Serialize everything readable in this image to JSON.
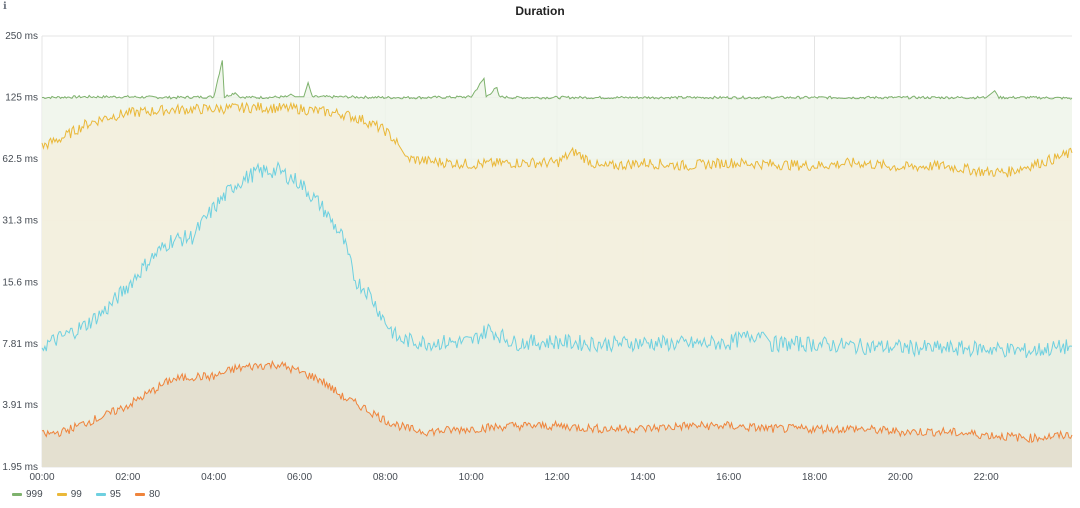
{
  "panel": {
    "title": "Duration",
    "info_icon": "info-icon"
  },
  "chart_data": {
    "type": "line",
    "title": "Duration",
    "y_scale": "log2",
    "ylim_ms": [
      1.95,
      250
    ],
    "y_ticks": [
      {
        "label": "250 ms",
        "value": 250
      },
      {
        "label": "125 ms",
        "value": 125
      },
      {
        "label": "62.5 ms",
        "value": 62.5
      },
      {
        "label": "31.3 ms",
        "value": 31.3
      },
      {
        "label": "15.6 ms",
        "value": 15.6
      },
      {
        "label": "7.81 ms",
        "value": 7.81
      },
      {
        "label": "3.91 ms",
        "value": 3.91
      },
      {
        "label": "1.95 ms",
        "value": 1.95
      }
    ],
    "x_range_hours": [
      0,
      24
    ],
    "x_ticks": [
      {
        "label": "00:00",
        "hour": 0
      },
      {
        "label": "02:00",
        "hour": 2
      },
      {
        "label": "04:00",
        "hour": 4
      },
      {
        "label": "06:00",
        "hour": 6
      },
      {
        "label": "08:00",
        "hour": 8
      },
      {
        "label": "10:00",
        "hour": 10
      },
      {
        "label": "12:00",
        "hour": 12
      },
      {
        "label": "14:00",
        "hour": 14
      },
      {
        "label": "16:00",
        "hour": 16
      },
      {
        "label": "18:00",
        "hour": 18
      },
      {
        "label": "20:00",
        "hour": 20
      },
      {
        "label": "22:00",
        "hour": 22
      }
    ],
    "grid": true,
    "legend_position": "bottom-left",
    "series": [
      {
        "name": "999",
        "color": "#7eb26d",
        "fill": "#eef5ea",
        "points": [
          [
            0,
            125
          ],
          [
            1,
            126
          ],
          [
            2,
            126
          ],
          [
            3,
            125
          ],
          [
            4,
            126
          ],
          [
            4.2,
            190
          ],
          [
            4.25,
            126
          ],
          [
            4.5,
            132
          ],
          [
            4.6,
            126
          ],
          [
            5,
            125
          ],
          [
            5.7,
            126
          ],
          [
            5.8,
            130
          ],
          [
            5.9,
            126
          ],
          [
            6.1,
            126
          ],
          [
            6.2,
            148
          ],
          [
            6.3,
            126
          ],
          [
            7,
            126
          ],
          [
            8,
            125
          ],
          [
            9,
            125
          ],
          [
            10,
            126
          ],
          [
            10.3,
            155
          ],
          [
            10.35,
            126
          ],
          [
            10.6,
            140
          ],
          [
            10.65,
            126
          ],
          [
            11,
            125
          ],
          [
            12,
            125
          ],
          [
            13,
            125
          ],
          [
            14,
            125
          ],
          [
            15,
            125
          ],
          [
            16,
            125
          ],
          [
            17,
            125
          ],
          [
            18,
            125
          ],
          [
            19,
            125
          ],
          [
            20,
            125
          ],
          [
            21,
            125
          ],
          [
            22,
            125
          ],
          [
            22.2,
            135
          ],
          [
            22.3,
            125
          ],
          [
            23,
            125
          ],
          [
            24,
            124
          ]
        ]
      },
      {
        "name": "99",
        "color": "#eab839",
        "fill": "#f3efdc",
        "points": [
          [
            0,
            72
          ],
          [
            0.5,
            80
          ],
          [
            1,
            92
          ],
          [
            1.5,
            100
          ],
          [
            2,
            105
          ],
          [
            3,
            109
          ],
          [
            4,
            110
          ],
          [
            5,
            112
          ],
          [
            6,
            110
          ],
          [
            7,
            104
          ],
          [
            7.5,
            97
          ],
          [
            8,
            86
          ],
          [
            8.3,
            74
          ],
          [
            8.5,
            63
          ],
          [
            9,
            61
          ],
          [
            10,
            59
          ],
          [
            11,
            60
          ],
          [
            12,
            60
          ],
          [
            12.4,
            68
          ],
          [
            13,
            57
          ],
          [
            14,
            60
          ],
          [
            15,
            58
          ],
          [
            16,
            60
          ],
          [
            17,
            59
          ],
          [
            18,
            58
          ],
          [
            19,
            60
          ],
          [
            20,
            57
          ],
          [
            21,
            58
          ],
          [
            22,
            54
          ],
          [
            22.5,
            54
          ],
          [
            23,
            58
          ],
          [
            23.5,
            62
          ],
          [
            24,
            67
          ]
        ]
      },
      {
        "name": "95",
        "color": "#6ed0e0",
        "fill": "#e6efe4",
        "points": [
          [
            0,
            7.6
          ],
          [
            0.5,
            8.5
          ],
          [
            1,
            9.6
          ],
          [
            1.5,
            11.5
          ],
          [
            2,
            15
          ],
          [
            2.5,
            20
          ],
          [
            3,
            25
          ],
          [
            3.5,
            26
          ],
          [
            4,
            36
          ],
          [
            4.5,
            47
          ],
          [
            5,
            54
          ],
          [
            5.5,
            55
          ],
          [
            6,
            48
          ],
          [
            6.5,
            37
          ],
          [
            7,
            26
          ],
          [
            7.3,
            16
          ],
          [
            7.6,
            14
          ],
          [
            8,
            10
          ],
          [
            8.3,
            8.2
          ],
          [
            9,
            7.9
          ],
          [
            10,
            8
          ],
          [
            10.4,
            9.2
          ],
          [
            11,
            7.9
          ],
          [
            12,
            8
          ],
          [
            13,
            7.8
          ],
          [
            14,
            7.9
          ],
          [
            15,
            7.8
          ],
          [
            16,
            7.9
          ],
          [
            16.8,
            8.9
          ],
          [
            17,
            7.8
          ],
          [
            18,
            7.8
          ],
          [
            19,
            7.6
          ],
          [
            20,
            7.5
          ],
          [
            21,
            7.4
          ],
          [
            22,
            7.4
          ],
          [
            23,
            7.2
          ],
          [
            24,
            7.6
          ]
        ]
      },
      {
        "name": "80",
        "color": "#ef843c",
        "fill": "#e3ddcd",
        "points": [
          [
            0,
            2.8
          ],
          [
            0.5,
            2.9
          ],
          [
            1,
            3.2
          ],
          [
            1.5,
            3.5
          ],
          [
            2,
            3.9
          ],
          [
            2.5,
            4.5
          ],
          [
            3,
            5.2
          ],
          [
            3.5,
            5.4
          ],
          [
            4,
            5.4
          ],
          [
            4.5,
            5.9
          ],
          [
            5,
            6.1
          ],
          [
            5.5,
            6.2
          ],
          [
            6,
            5.7
          ],
          [
            6.5,
            5.2
          ],
          [
            7,
            4.3
          ],
          [
            7.5,
            3.8
          ],
          [
            8,
            3.3
          ],
          [
            8.5,
            3.0
          ],
          [
            9,
            2.9
          ],
          [
            10,
            3.0
          ],
          [
            11,
            3.1
          ],
          [
            12,
            3.1
          ],
          [
            13,
            3.0
          ],
          [
            14,
            3.0
          ],
          [
            15,
            3.1
          ],
          [
            16,
            3.1
          ],
          [
            17,
            3.0
          ],
          [
            18,
            3.0
          ],
          [
            19,
            3.0
          ],
          [
            20,
            2.9
          ],
          [
            21,
            2.9
          ],
          [
            22,
            2.8
          ],
          [
            23,
            2.7
          ],
          [
            24,
            2.8
          ]
        ]
      }
    ]
  }
}
